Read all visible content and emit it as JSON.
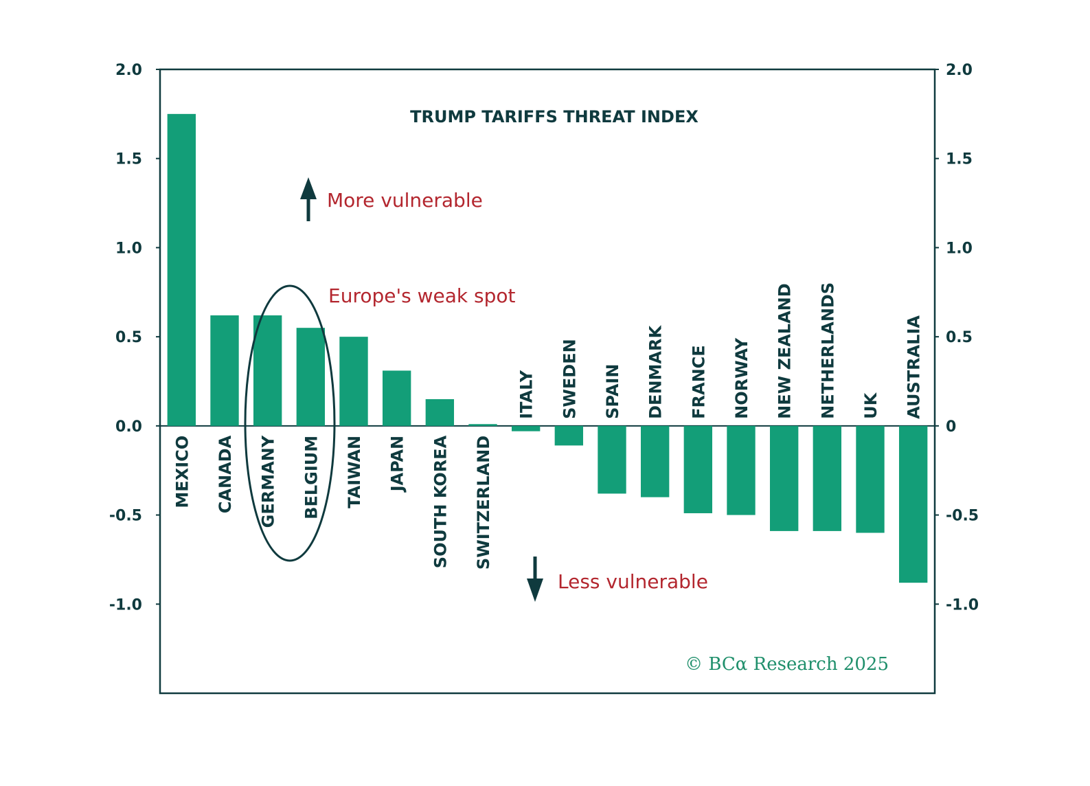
{
  "colors": {
    "bar": "#139e78",
    "axis": "#0f3a3e",
    "annotation": "#b3262e",
    "copyright": "#1f8f6b"
  },
  "chart_data": {
    "type": "bar",
    "title": "TRUMP TARIFFS THREAT INDEX",
    "categories": [
      "MEXICO",
      "CANADA",
      "GERMANY",
      "BELGIUM",
      "TAIWAN",
      "JAPAN",
      "SOUTH KOREA",
      "SWITZERLAND",
      "ITALY",
      "SWEDEN",
      "SPAIN",
      "DENMARK",
      "FRANCE",
      "NORWAY",
      "NEW ZEALAND",
      "NETHERLANDS",
      "UK",
      "AUSTRALIA"
    ],
    "values": [
      1.75,
      0.62,
      0.62,
      0.55,
      0.5,
      0.31,
      0.15,
      0.01,
      -0.03,
      -0.11,
      -0.38,
      -0.4,
      -0.49,
      -0.5,
      -0.59,
      -0.59,
      -0.6,
      -0.88
    ],
    "ylim": [
      -1.5,
      2.0
    ],
    "left_ticks": [
      "2.0",
      "1.5",
      "1.0",
      "0.5",
      "0.0",
      "-0.5",
      "-1.0"
    ],
    "right_ticks": [
      "2.0",
      "1.5",
      "1.0",
      "0.5",
      "0",
      "-0.5",
      "-1.0"
    ],
    "tick_values": [
      2.0,
      1.5,
      1.0,
      0.5,
      0.0,
      -0.5,
      -1.0
    ],
    "grid": false,
    "legend": "none",
    "annotations": {
      "more": "More vulnerable",
      "weak_spot": "Europe's weak spot",
      "less": "Less vulnerable"
    },
    "highlight": [
      "GERMANY",
      "BELGIUM"
    ]
  },
  "copyright": "© BCα Research 2025"
}
